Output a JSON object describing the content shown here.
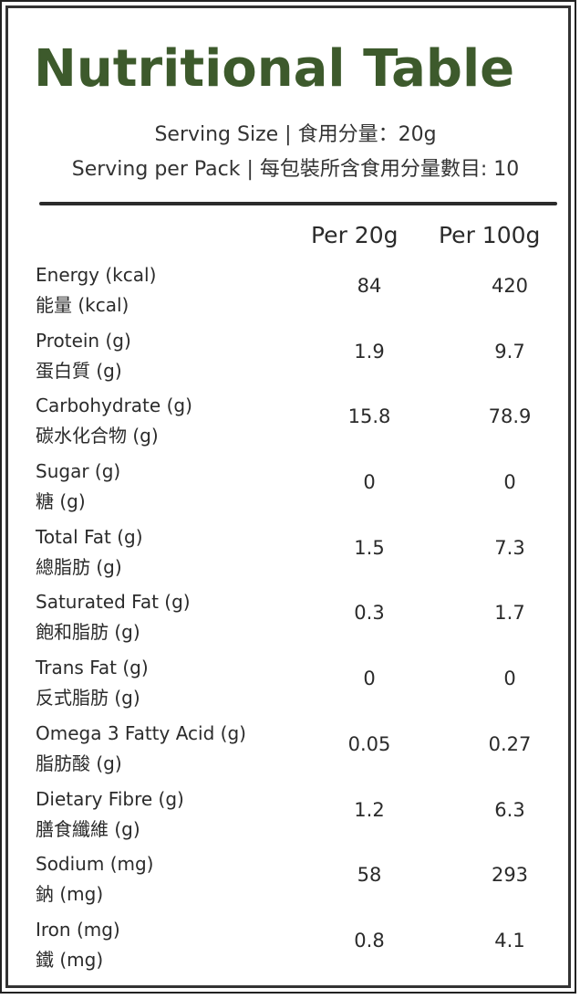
{
  "title": "Nutritional Table",
  "serving_size": "Serving Size | 食用分量：20g",
  "serving_per_pack": "Serving per Pack | 每包裝所含食用分量數目: 10",
  "columns": [
    "Per 20g",
    "Per 100g"
  ],
  "colors": {
    "title": "#3d5a2c",
    "text": "#2b2b2b",
    "border": "#333333"
  },
  "rows": [
    {
      "en": "Energy (kcal)",
      "zh": "能量 (kcal)",
      "per20": "84",
      "per100": "420"
    },
    {
      "en": "Protein (g)",
      "zh": "蛋白質 (g)",
      "per20": "1.9",
      "per100": "9.7"
    },
    {
      "en": "Carbohydrate (g)",
      "zh": "碳水化合物 (g)",
      "per20": "15.8",
      "per100": "78.9"
    },
    {
      "en": "Sugar (g)",
      "zh": "糖 (g)",
      "per20": "0",
      "per100": "0"
    },
    {
      "en": "Total Fat (g)",
      "zh": "總脂肪 (g)",
      "per20": "1.5",
      "per100": "7.3"
    },
    {
      "en": "Saturated Fat (g)",
      "zh": "飽和脂肪 (g)",
      "per20": "0.3",
      "per100": "1.7"
    },
    {
      "en": "Trans Fat (g)",
      "zh": "反式脂肪 (g)",
      "per20": "0",
      "per100": "0"
    },
    {
      "en": "Omega 3 Fatty Acid (g)",
      "zh": "脂肪酸 (g)",
      "per20": "0.05",
      "per100": "0.27"
    },
    {
      "en": "Dietary Fibre (g)",
      "zh": "膳食纖維 (g)",
      "per20": "1.2",
      "per100": "6.3"
    },
    {
      "en": "Sodium (mg)",
      "zh": "鈉 (mg)",
      "per20": "58",
      "per100": "293"
    },
    {
      "en": "Iron (mg)",
      "zh": "鐵 (mg)",
      "per20": "0.8",
      "per100": "4.1"
    }
  ]
}
